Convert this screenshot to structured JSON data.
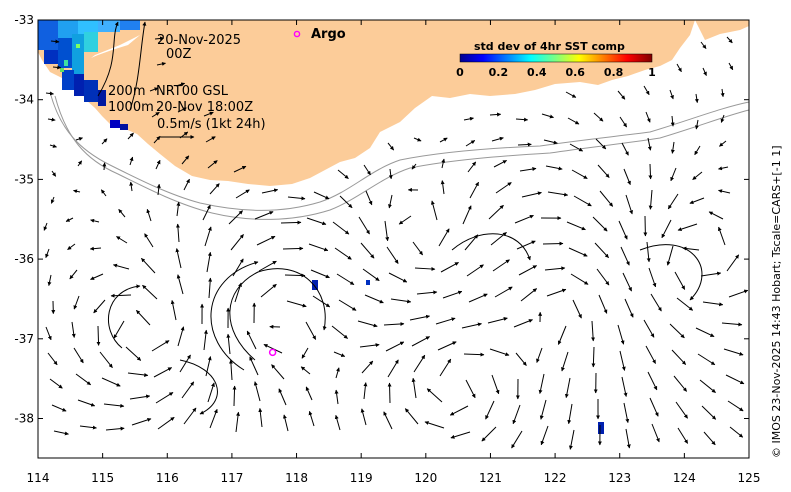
{
  "map": {
    "date_line1": "20-Nov-2025",
    "date_line2": "00Z",
    "depth_line1": "200m",
    "depth_line2": "1000m",
    "product_line1": "NRT00 GSL",
    "product_line2": "20-Nov 18:00Z",
    "scale_label": "0.5m/s (1kt 24h)",
    "argo_label": "Argo",
    "credit": "© IMOS 23-Nov-2025 14:43 Hobart; Tscale=CARS+[-1 1]",
    "colors": {
      "land": "#fccc99",
      "argo": "#ff00ff",
      "contour": "#999999"
    }
  },
  "colorbar": {
    "title": "std dev of 4hr SST comp",
    "ticks": [
      "0",
      "0.2",
      "0.4",
      "0.6",
      "0.8",
      "1"
    ]
  },
  "axes": {
    "x_ticks": [
      "114",
      "115",
      "116",
      "117",
      "118",
      "119",
      "120",
      "121",
      "122",
      "123",
      "124",
      "125"
    ],
    "y_ticks": [
      "-33",
      "-34",
      "-35",
      "-36",
      "-37",
      "-38"
    ]
  },
  "argo_floats": [
    {
      "lon": 117.63,
      "lat": -37.17
    }
  ]
}
